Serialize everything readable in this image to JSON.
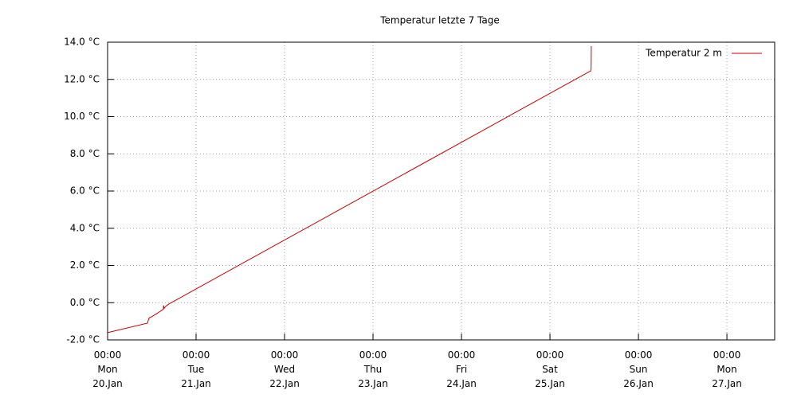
{
  "chart_data": {
    "type": "line",
    "title": "Temperatur letzte 7 Tage",
    "x": [
      0,
      0.45,
      0.46,
      0.47,
      0.5,
      0.55,
      0.6,
      0.63,
      0.632,
      0.64,
      0.66,
      0.7,
      5.46,
      5.465,
      5.467
    ],
    "series": [
      {
        "name": "Temperatur 2 m",
        "color": "#cc0000",
        "values": [
          -1.61,
          -1.1,
          -0.95,
          -0.82,
          -0.75,
          -0.6,
          -0.45,
          -0.35,
          -0.15,
          -0.3,
          -0.18,
          -0.05,
          12.46,
          12.6,
          13.79
        ]
      }
    ],
    "xlim": [
      0,
      7.54
    ],
    "xticks": [
      {
        "value": 0,
        "label": "00:00\nMon\n20.Jan"
      },
      {
        "value": 1,
        "label": "00:00\nTue\n21.Jan"
      },
      {
        "value": 2,
        "label": "00:00\nWed\n22.Jan"
      },
      {
        "value": 3,
        "label": "00:00\nThu\n23.Jan"
      },
      {
        "value": 4,
        "label": "00:00\nFri\n24.Jan"
      },
      {
        "value": 5,
        "label": "00:00\nSat\n25.Jan"
      },
      {
        "value": 6,
        "label": "00:00\nSun\n26.Jan"
      },
      {
        "value": 7,
        "label": "00:00\nMon\n27.Jan"
      }
    ],
    "ylim": [
      -2,
      14
    ],
    "yticks": [
      {
        "value": -2,
        "label": "-2.0 °C"
      },
      {
        "value": 0,
        "label": "0.0 °C"
      },
      {
        "value": 2,
        "label": "2.0 °C"
      },
      {
        "value": 4,
        "label": "4.0 °C"
      },
      {
        "value": 6,
        "label": "6.0 °C"
      },
      {
        "value": 8,
        "label": "8.0 °C"
      },
      {
        "value": 10,
        "label": "10.0 °C"
      },
      {
        "value": 12,
        "label": "12.0 °C"
      },
      {
        "value": 14,
        "label": "14.0 °C"
      }
    ],
    "grid": true,
    "legend": "top-right"
  }
}
